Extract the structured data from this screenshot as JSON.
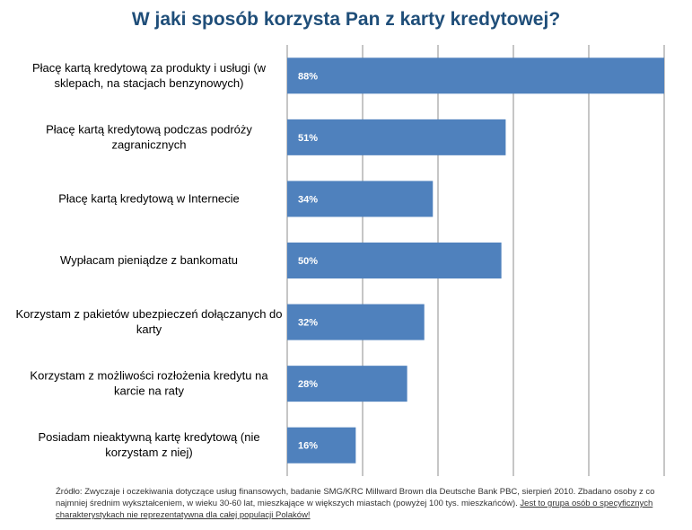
{
  "chart_data": {
    "type": "bar",
    "orientation": "horizontal",
    "title": "W jaki sposób korzysta Pan z karty kredytowej?",
    "categories": [
      [
        "Płacę kartą kredytową za produkty i usługi (w",
        "sklepach, na stacjach benzynowych)"
      ],
      [
        "Płacę kartą kredytową podczas podróży",
        "zagranicznych"
      ],
      [
        "Płacę kartą kredytową w Internecie"
      ],
      [
        "Wypłacam pieniądze z bankomatu"
      ],
      [
        "Korzystam z pakietów ubezpieczeń dołączanych do",
        "karty"
      ],
      [
        "Korzystam z możliwości rozłożenia kredytu na",
        "karcie na raty"
      ],
      [
        "Posiadam nieaktywną kartę kredytową (nie",
        "korzystam z niej)"
      ]
    ],
    "values": [
      88,
      51,
      34,
      50,
      32,
      28,
      16
    ],
    "value_labels": [
      "88%",
      "51%",
      "34%",
      "50%",
      "32%",
      "28%",
      "16%"
    ],
    "xlim": [
      0,
      88
    ],
    "grid": true,
    "bar_color": "#4f81bd",
    "grid_color": "#8c8c8c"
  },
  "source": {
    "text": "Źródło: Zwyczaje i oczekiwania dotyczące usług finansowych, badanie SMG/KRC Millward Brown dla Deutsche Bank PBC, sierpień 2010. Zbadano osoby z co najmniej średnim wykształceniem, w wieku 30-60 lat, mieszkające w większych miastach (powyżej 100 tys. mieszkańców). ",
    "underlined": "Jest to grupa osób o specyficznych charakterystykach nie reprezentatywna dla całej populacji Polaków!"
  }
}
